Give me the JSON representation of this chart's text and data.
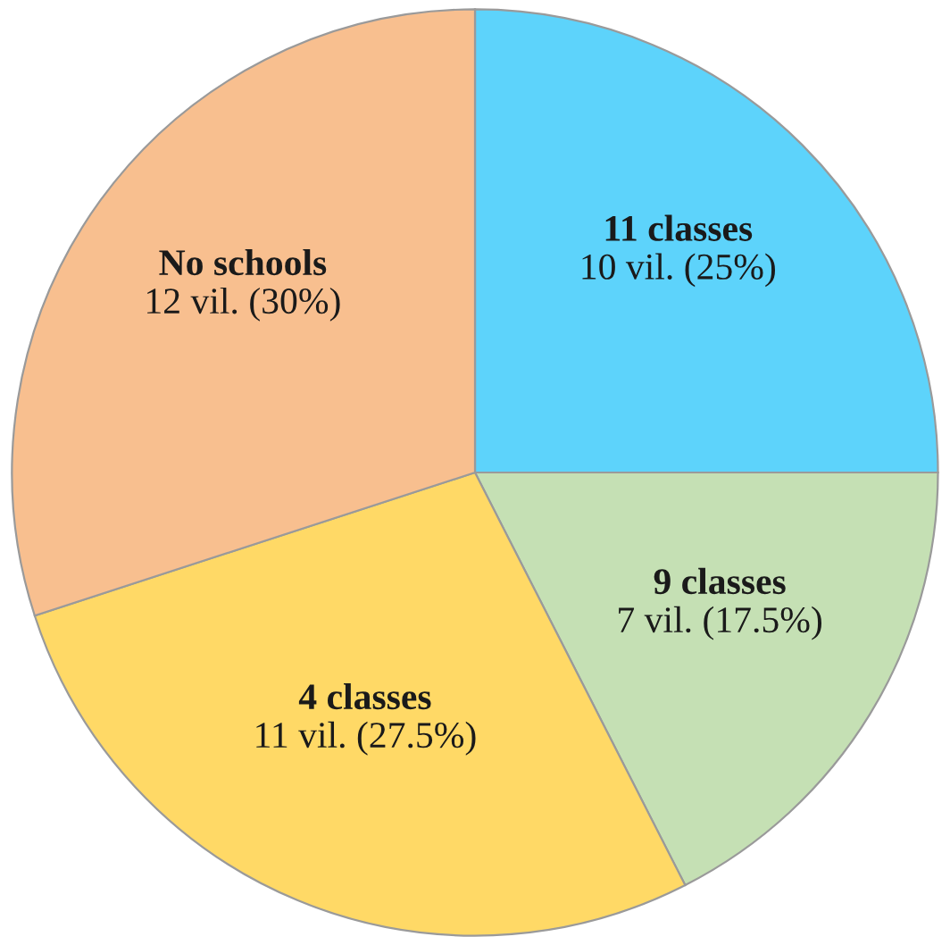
{
  "chart_data": {
    "type": "pie",
    "categories": [
      "11 classes",
      "9 classes",
      "4 classes",
      "No schools"
    ],
    "values": [
      10,
      7,
      11,
      12
    ],
    "value_labels": [
      "10 vil. (25%)",
      "7 vil. (17.5%)",
      "11 vil. (27.5%)",
      "12 vil. (30%)"
    ],
    "colors": [
      "#5dd3fb",
      "#c5e0b4",
      "#ffd966",
      "#f8bf8f"
    ]
  }
}
